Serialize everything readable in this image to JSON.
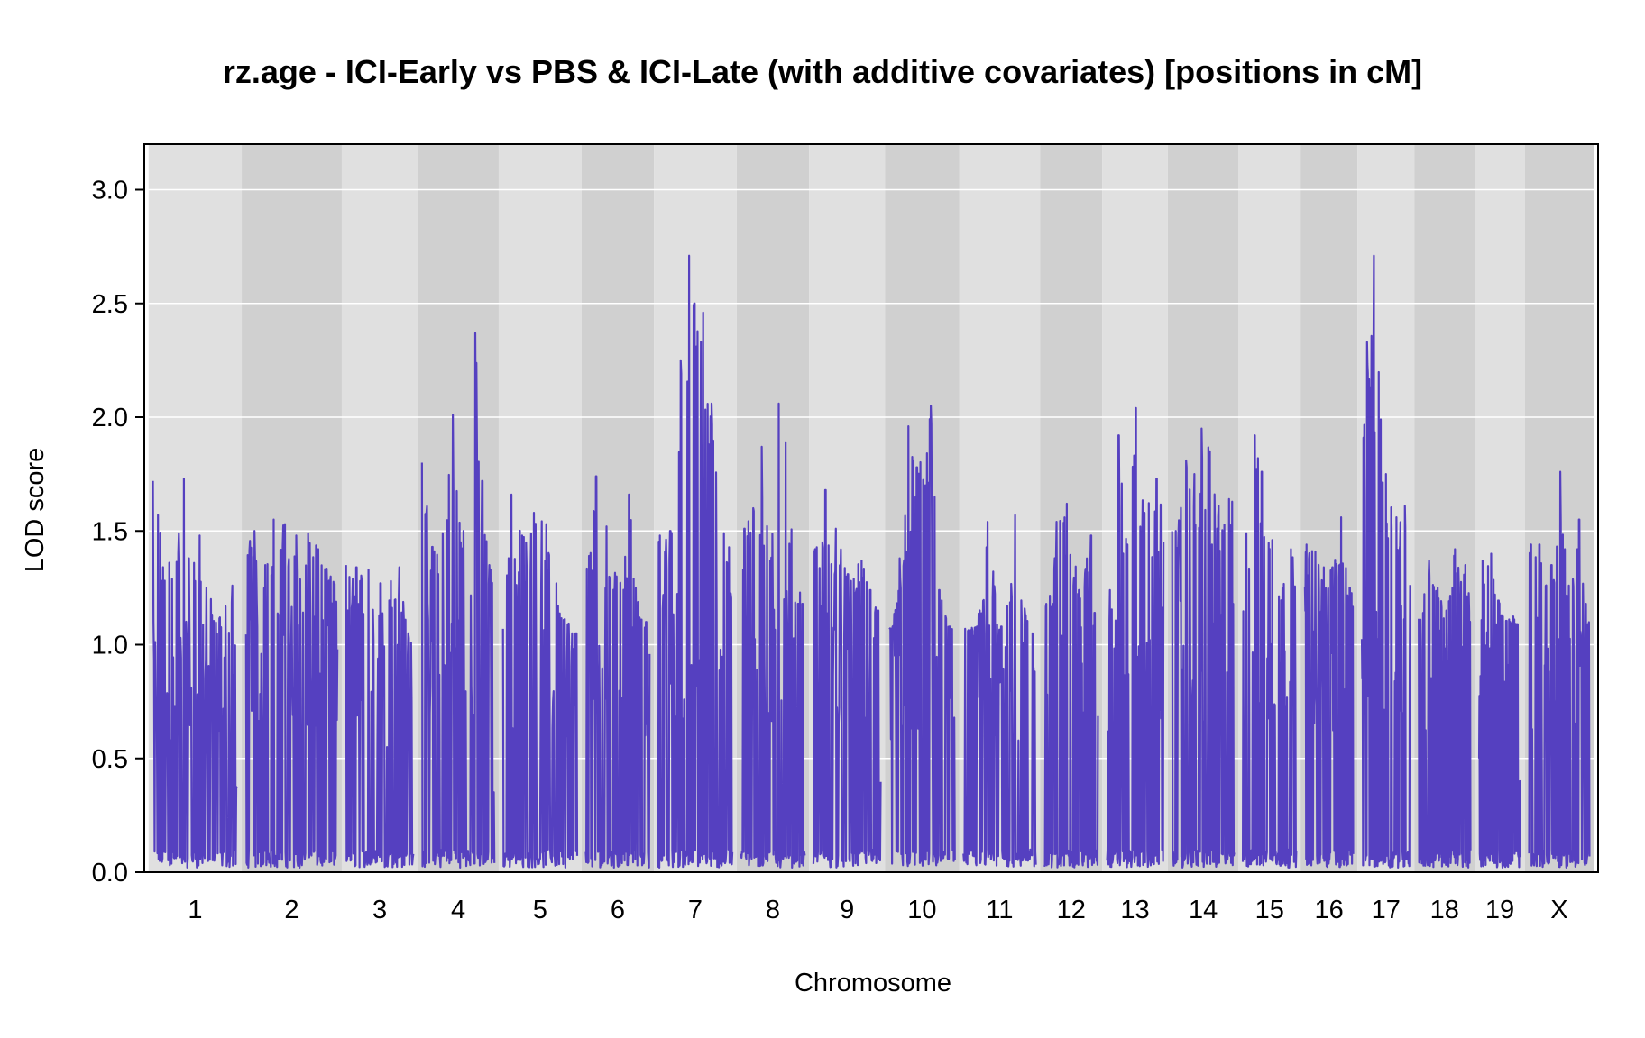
{
  "chart_data": {
    "type": "line",
    "title": "rz.age - ICI-Early vs PBS & ICI-Late (with additive covariates) [positions in cM]",
    "xlabel": "Chromosome",
    "ylabel": "LOD score",
    "ylim": [
      0,
      3.2
    ],
    "yticks": [
      "0.0",
      "0.5",
      "1.0",
      "1.5",
      "2.0",
      "2.5",
      "3.0"
    ],
    "ytick_values": [
      0,
      0.5,
      1.0,
      1.5,
      2.0,
      2.5,
      3.0
    ],
    "grid": true,
    "alternating_chromosome_shading": true,
    "colors": {
      "line": "#5540c0",
      "band_light": "#e0e0e0",
      "band_dark": "#d0d0d0",
      "grid": "#ffffff"
    },
    "chromosomes": [
      {
        "label": "1",
        "length_cM": 98,
        "peaks": [
          [
            0,
            1.72
          ],
          [
            6,
            1.57
          ],
          [
            19,
            1.36
          ],
          [
            30,
            1.49
          ],
          [
            36,
            1.73
          ],
          [
            42,
            1.38
          ],
          [
            54,
            1.48
          ],
          [
            62,
            1.25
          ],
          [
            78,
            1.12
          ],
          [
            92,
            1.26
          ]
        ],
        "floor": 1.05,
        "tail": 0.35
      },
      {
        "label": "2",
        "length_cM": 106,
        "peaks": [
          [
            10,
            1.5
          ],
          [
            22,
            1.35
          ],
          [
            32,
            1.55
          ],
          [
            45,
            1.53
          ],
          [
            58,
            1.48
          ],
          [
            72,
            1.49
          ],
          [
            84,
            1.42
          ],
          [
            98,
            1.3
          ]
        ],
        "floor": 1.15,
        "tail": 1.15
      },
      {
        "label": "3",
        "length_cM": 78,
        "peaks": [
          [
            0,
            1.35
          ],
          [
            12,
            1.34
          ],
          [
            26,
            1.33
          ],
          [
            40,
            1.27
          ],
          [
            52,
            1.28
          ],
          [
            62,
            1.34
          ],
          [
            72,
            1.05
          ]
        ],
        "floor": 1.0,
        "tail": 1.04
      },
      {
        "label": "4",
        "length_cM": 84,
        "peaks": [
          [
            0,
            1.8
          ],
          [
            12,
            1.43
          ],
          [
            24,
            1.49
          ],
          [
            36,
            2.01
          ],
          [
            48,
            1.5
          ],
          [
            62,
            2.37
          ],
          [
            70,
            1.72
          ],
          [
            78,
            1.35
          ]
        ],
        "floor": 1.18,
        "tail": 0.35
      },
      {
        "label": "5",
        "length_cM": 86,
        "peaks": [
          [
            0,
            1.07
          ],
          [
            10,
            1.66
          ],
          [
            22,
            1.48
          ],
          [
            36,
            1.58
          ],
          [
            50,
            1.53
          ],
          [
            62,
            1.27
          ],
          [
            80,
            1.05
          ]
        ],
        "floor": 1.05,
        "tail": 1.05
      },
      {
        "label": "6",
        "length_cM": 74,
        "peaks": [
          [
            4,
            1.39
          ],
          [
            12,
            1.74
          ],
          [
            24,
            1.52
          ],
          [
            36,
            1.3
          ],
          [
            50,
            1.66
          ],
          [
            62,
            1.12
          ],
          [
            70,
            1.1
          ]
        ],
        "floor": 1.05,
        "tail": 1.05
      },
      {
        "label": "7",
        "length_cM": 86,
        "peaks": [
          [
            2,
            1.48
          ],
          [
            14,
            1.5
          ],
          [
            26,
            2.25
          ],
          [
            36,
            2.71
          ],
          [
            42,
            2.5
          ],
          [
            52,
            2.46
          ],
          [
            62,
            2.06
          ],
          [
            76,
            1.49
          ]
        ],
        "floor": 1.2,
        "tail": 1.37
      },
      {
        "label": "8",
        "length_cM": 74,
        "peaks": [
          [
            4,
            1.51
          ],
          [
            14,
            1.6
          ],
          [
            24,
            1.87
          ],
          [
            34,
            1.37
          ],
          [
            44,
            2.06
          ],
          [
            52,
            1.89
          ],
          [
            66,
            1.18
          ]
        ],
        "floor": 1.18,
        "tail": 1.18
      },
      {
        "label": "9",
        "length_cM": 78,
        "peaks": [
          [
            2,
            1.42
          ],
          [
            14,
            1.68
          ],
          [
            26,
            1.51
          ],
          [
            40,
            1.31
          ],
          [
            56,
            1.37
          ],
          [
            66,
            1.24
          ],
          [
            74,
            1.15
          ]
        ],
        "floor": 1.15,
        "tail": 0.35
      },
      {
        "label": "10",
        "length_cM": 76,
        "peaks": [
          [
            4,
            1.08
          ],
          [
            12,
            1.38
          ],
          [
            22,
            1.96
          ],
          [
            32,
            1.78
          ],
          [
            48,
            2.05
          ],
          [
            58,
            1.24
          ],
          [
            70,
            1.08
          ]
        ],
        "floor": 1.06,
        "tail": 1.06
      },
      {
        "label": "11",
        "length_cM": 84,
        "peaks": [
          [
            2,
            1.07
          ],
          [
            16,
            1.08
          ],
          [
            28,
            1.54
          ],
          [
            44,
            1.08
          ],
          [
            60,
            1.57
          ],
          [
            72,
            1.13
          ],
          [
            80,
            1.05
          ]
        ],
        "floor": 1.05,
        "tail": 1.05
      },
      {
        "label": "12",
        "length_cM": 62,
        "peaks": [
          [
            2,
            1.18
          ],
          [
            14,
            1.54
          ],
          [
            26,
            1.62
          ],
          [
            40,
            1.24
          ],
          [
            54,
            1.48
          ],
          [
            58,
            1.14
          ]
        ],
        "floor": 1.14,
        "tail": 1.14
      },
      {
        "label": "13",
        "length_cM": 66,
        "peaks": [
          [
            4,
            1.24
          ],
          [
            14,
            1.92
          ],
          [
            24,
            1.44
          ],
          [
            34,
            2.04
          ],
          [
            44,
            1.58
          ],
          [
            58,
            1.73
          ]
        ],
        "floor": 1.12,
        "tail": 1.45
      },
      {
        "label": "14",
        "length_cM": 72,
        "peaks": [
          [
            4,
            1.5
          ],
          [
            16,
            1.81
          ],
          [
            26,
            1.75
          ],
          [
            34,
            1.95
          ],
          [
            44,
            1.85
          ],
          [
            54,
            1.61
          ],
          [
            66,
            1.64
          ]
        ],
        "floor": 1.15,
        "tail": 1.15
      },
      {
        "label": "15",
        "length_cM": 62,
        "peaks": [
          [
            4,
            1.49
          ],
          [
            14,
            1.92
          ],
          [
            22,
            1.76
          ],
          [
            34,
            1.46
          ],
          [
            46,
            1.25
          ],
          [
            56,
            1.42
          ]
        ],
        "floor": 1.12,
        "tail": 1.22
      },
      {
        "label": "16",
        "length_cM": 56,
        "peaks": [
          [
            2,
            1.44
          ],
          [
            12,
            1.41
          ],
          [
            22,
            1.34
          ],
          [
            32,
            1.34
          ],
          [
            42,
            1.56
          ],
          [
            52,
            1.25
          ]
        ],
        "floor": 1.12,
        "tail": 1.12
      },
      {
        "label": "17",
        "length_cM": 56,
        "peaks": [
          [
            2,
            1.91
          ],
          [
            6,
            2.33
          ],
          [
            14,
            2.71
          ],
          [
            22,
            1.99
          ],
          [
            28,
            1.75
          ],
          [
            40,
            1.56
          ],
          [
            50,
            1.61
          ]
        ],
        "floor": 1.25,
        "tail": 1.25
      },
      {
        "label": "18",
        "length_cM": 60,
        "peaks": [
          [
            2,
            1.11
          ],
          [
            12,
            1.37
          ],
          [
            22,
            1.25
          ],
          [
            32,
            1.15
          ],
          [
            42,
            1.42
          ],
          [
            54,
            1.35
          ]
        ],
        "floor": 1.1,
        "tail": 1.1
      },
      {
        "label": "19",
        "length_cM": 48,
        "peaks": [
          [
            0,
            0.5
          ],
          [
            4,
            1.37
          ],
          [
            14,
            1.4
          ],
          [
            26,
            1.13
          ],
          [
            36,
            1.1
          ],
          [
            44,
            1.09
          ]
        ],
        "floor": 1.09,
        "tail": 0.35
      },
      {
        "label": "X",
        "length_cM": 70,
        "peaks": [
          [
            2,
            1.44
          ],
          [
            12,
            1.44
          ],
          [
            26,
            1.35
          ],
          [
            36,
            1.76
          ],
          [
            46,
            1.26
          ],
          [
            58,
            1.55
          ],
          [
            66,
            1.18
          ]
        ],
        "floor": 1.09,
        "tail": 1.09
      }
    ]
  }
}
